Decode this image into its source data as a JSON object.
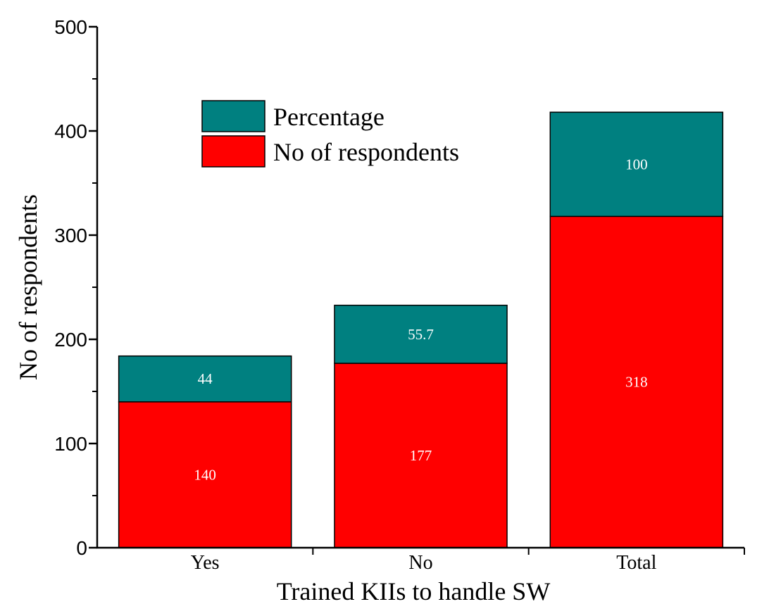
{
  "chart_data": {
    "type": "bar",
    "stacked": true,
    "categories": [
      "Yes",
      "No",
      "Total"
    ],
    "series": [
      {
        "name": "No of respondents",
        "color": "#ff0000",
        "values": [
          140,
          177,
          318
        ]
      },
      {
        "name": "Percentage",
        "color": "#008080",
        "values": [
          44,
          55.7,
          100
        ]
      }
    ],
    "data_labels": {
      "No of respondents": [
        "140",
        "177",
        "318"
      ],
      "Percentage": [
        "44",
        "55.7",
        "100"
      ]
    },
    "title": "",
    "xlabel": "Trained KIIs to handle SW",
    "ylabel": "No of respondents",
    "ylim": [
      0,
      500
    ],
    "yticks": [
      0,
      100,
      200,
      300,
      400,
      500
    ],
    "ytick_labels": [
      "0",
      "100",
      "200",
      "300",
      "400",
      "500"
    ],
    "grid": false,
    "legend": {
      "position": "top-left",
      "entries": [
        {
          "label": "Percentage",
          "color": "#008080"
        },
        {
          "label": "No of respondents",
          "color": "#ff0000"
        }
      ]
    }
  }
}
